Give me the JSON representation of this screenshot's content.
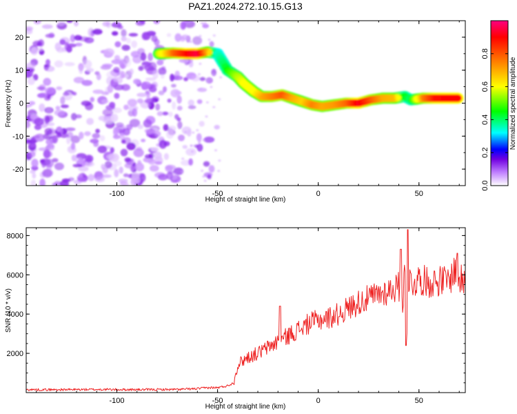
{
  "figure": {
    "title": "PAZ1.2024.272.10.15.G13"
  },
  "chart_data": [
    {
      "type": "heatmap",
      "title": "PAZ1.2024.272.10.15.G13",
      "xlabel": "Height of straight line (km)",
      "ylabel": "Frequency (Hz)",
      "xlim": [
        -145,
        73
      ],
      "ylim": [
        -25,
        25
      ],
      "x_ticks": [
        -100,
        -50,
        0,
        50
      ],
      "y_ticks": [
        -20,
        -10,
        0,
        10,
        20
      ],
      "grid": false,
      "colorbar": {
        "label": "Normalized spectral amplitude",
        "range": [
          0,
          1
        ],
        "ticks": [
          0.0,
          0.2,
          0.4,
          0.6,
          0.8
        ],
        "colormap": [
          "#ffffff",
          "#c080ff",
          "#7000e0",
          "#0000ff",
          "#00ffff",
          "#00ff00",
          "#ffff00",
          "#ff8000",
          "#ff0000",
          "#ff0080"
        ]
      },
      "noise_region": {
        "x_range": [
          -145,
          -50
        ],
        "freq_range": [
          -25,
          25
        ],
        "amplitude_range": [
          0.02,
          0.12
        ]
      },
      "signal_ridge": {
        "points": [
          {
            "x": -79,
            "freq": 15.0,
            "amp": 0.55
          },
          {
            "x": -72,
            "freq": 15.2,
            "amp": 0.78
          },
          {
            "x": -65,
            "freq": 15.0,
            "amp": 0.9
          },
          {
            "x": -60,
            "freq": 15.0,
            "amp": 0.95
          },
          {
            "x": -55,
            "freq": 15.5,
            "amp": 0.7
          },
          {
            "x": -50,
            "freq": 15.0,
            "amp": 0.35
          },
          {
            "x": -47,
            "freq": 12.0,
            "amp": 0.4
          },
          {
            "x": -45,
            "freq": 10.0,
            "amp": 0.45
          },
          {
            "x": -40,
            "freq": 8.0,
            "amp": 0.55
          },
          {
            "x": -37,
            "freq": 6.0,
            "amp": 0.6
          },
          {
            "x": -32,
            "freq": 3.5,
            "amp": 0.6
          },
          {
            "x": -28,
            "freq": 2.0,
            "amp": 0.7
          },
          {
            "x": -23,
            "freq": 2.0,
            "amp": 0.75
          },
          {
            "x": -18,
            "freq": 2.5,
            "amp": 0.8
          },
          {
            "x": -13,
            "freq": 1.5,
            "amp": 0.7
          },
          {
            "x": -8,
            "freq": 0.5,
            "amp": 0.65
          },
          {
            "x": -3,
            "freq": -0.5,
            "amp": 0.75
          },
          {
            "x": 2,
            "freq": -1.0,
            "amp": 0.7
          },
          {
            "x": 8,
            "freq": -0.5,
            "amp": 0.72
          },
          {
            "x": 14,
            "freq": 0.0,
            "amp": 0.78
          },
          {
            "x": 20,
            "freq": 0.0,
            "amp": 0.92
          },
          {
            "x": 26,
            "freq": 1.0,
            "amp": 0.8
          },
          {
            "x": 32,
            "freq": 1.5,
            "amp": 0.7
          },
          {
            "x": 38,
            "freq": 1.5,
            "amp": 0.68
          },
          {
            "x": 43,
            "freq": 2.0,
            "amp": 0.45
          },
          {
            "x": 46,
            "freq": 1.0,
            "amp": 0.4
          },
          {
            "x": 52,
            "freq": 1.5,
            "amp": 0.75
          },
          {
            "x": 58,
            "freq": 1.5,
            "amp": 0.88
          },
          {
            "x": 64,
            "freq": 1.5,
            "amp": 0.9
          },
          {
            "x": 70,
            "freq": 1.5,
            "amp": 0.9
          }
        ]
      }
    },
    {
      "type": "line",
      "title": "",
      "xlabel": "Height of straight line (km)",
      "ylabel": "SNR (10 * v/v)",
      "xlim": [
        -145,
        73
      ],
      "ylim": [
        0,
        8400
      ],
      "x_ticks": [
        -100,
        -50,
        0,
        50
      ],
      "y_ticks": [
        2000,
        4000,
        6000,
        8000
      ],
      "grid": false,
      "line_color": "#ee2222",
      "series": [
        {
          "x": [
            -145,
            -130,
            -110,
            -90,
            -70,
            -60,
            -55,
            -50,
            -45,
            -42,
            -40,
            -38,
            -35,
            -30,
            -25,
            -20,
            -15,
            -10,
            -5,
            0,
            5,
            10,
            15,
            20,
            25,
            30,
            35,
            40,
            42,
            43,
            44,
            45,
            46,
            48,
            50,
            55,
            60,
            65,
            68,
            70,
            73
          ],
          "y": [
            150,
            150,
            160,
            150,
            160,
            200,
            250,
            250,
            350,
            500,
            1400,
            1600,
            1800,
            2000,
            2300,
            2600,
            2900,
            3200,
            3500,
            3700,
            3800,
            4000,
            4300,
            4600,
            4800,
            5000,
            5200,
            5400,
            4500,
            6500,
            3000,
            5800,
            5600,
            5600,
            5800,
            5600,
            5700,
            5700,
            6300,
            5800,
            5500
          ]
        }
      ],
      "features": [
        {
          "x": 44.5,
          "y": 8300
        },
        {
          "x": 43.5,
          "y": 2400
        },
        {
          "x": 41,
          "y": 7300
        },
        {
          "x": -19,
          "y": 4400
        },
        {
          "x": 69,
          "y": 7100
        }
      ]
    }
  ]
}
